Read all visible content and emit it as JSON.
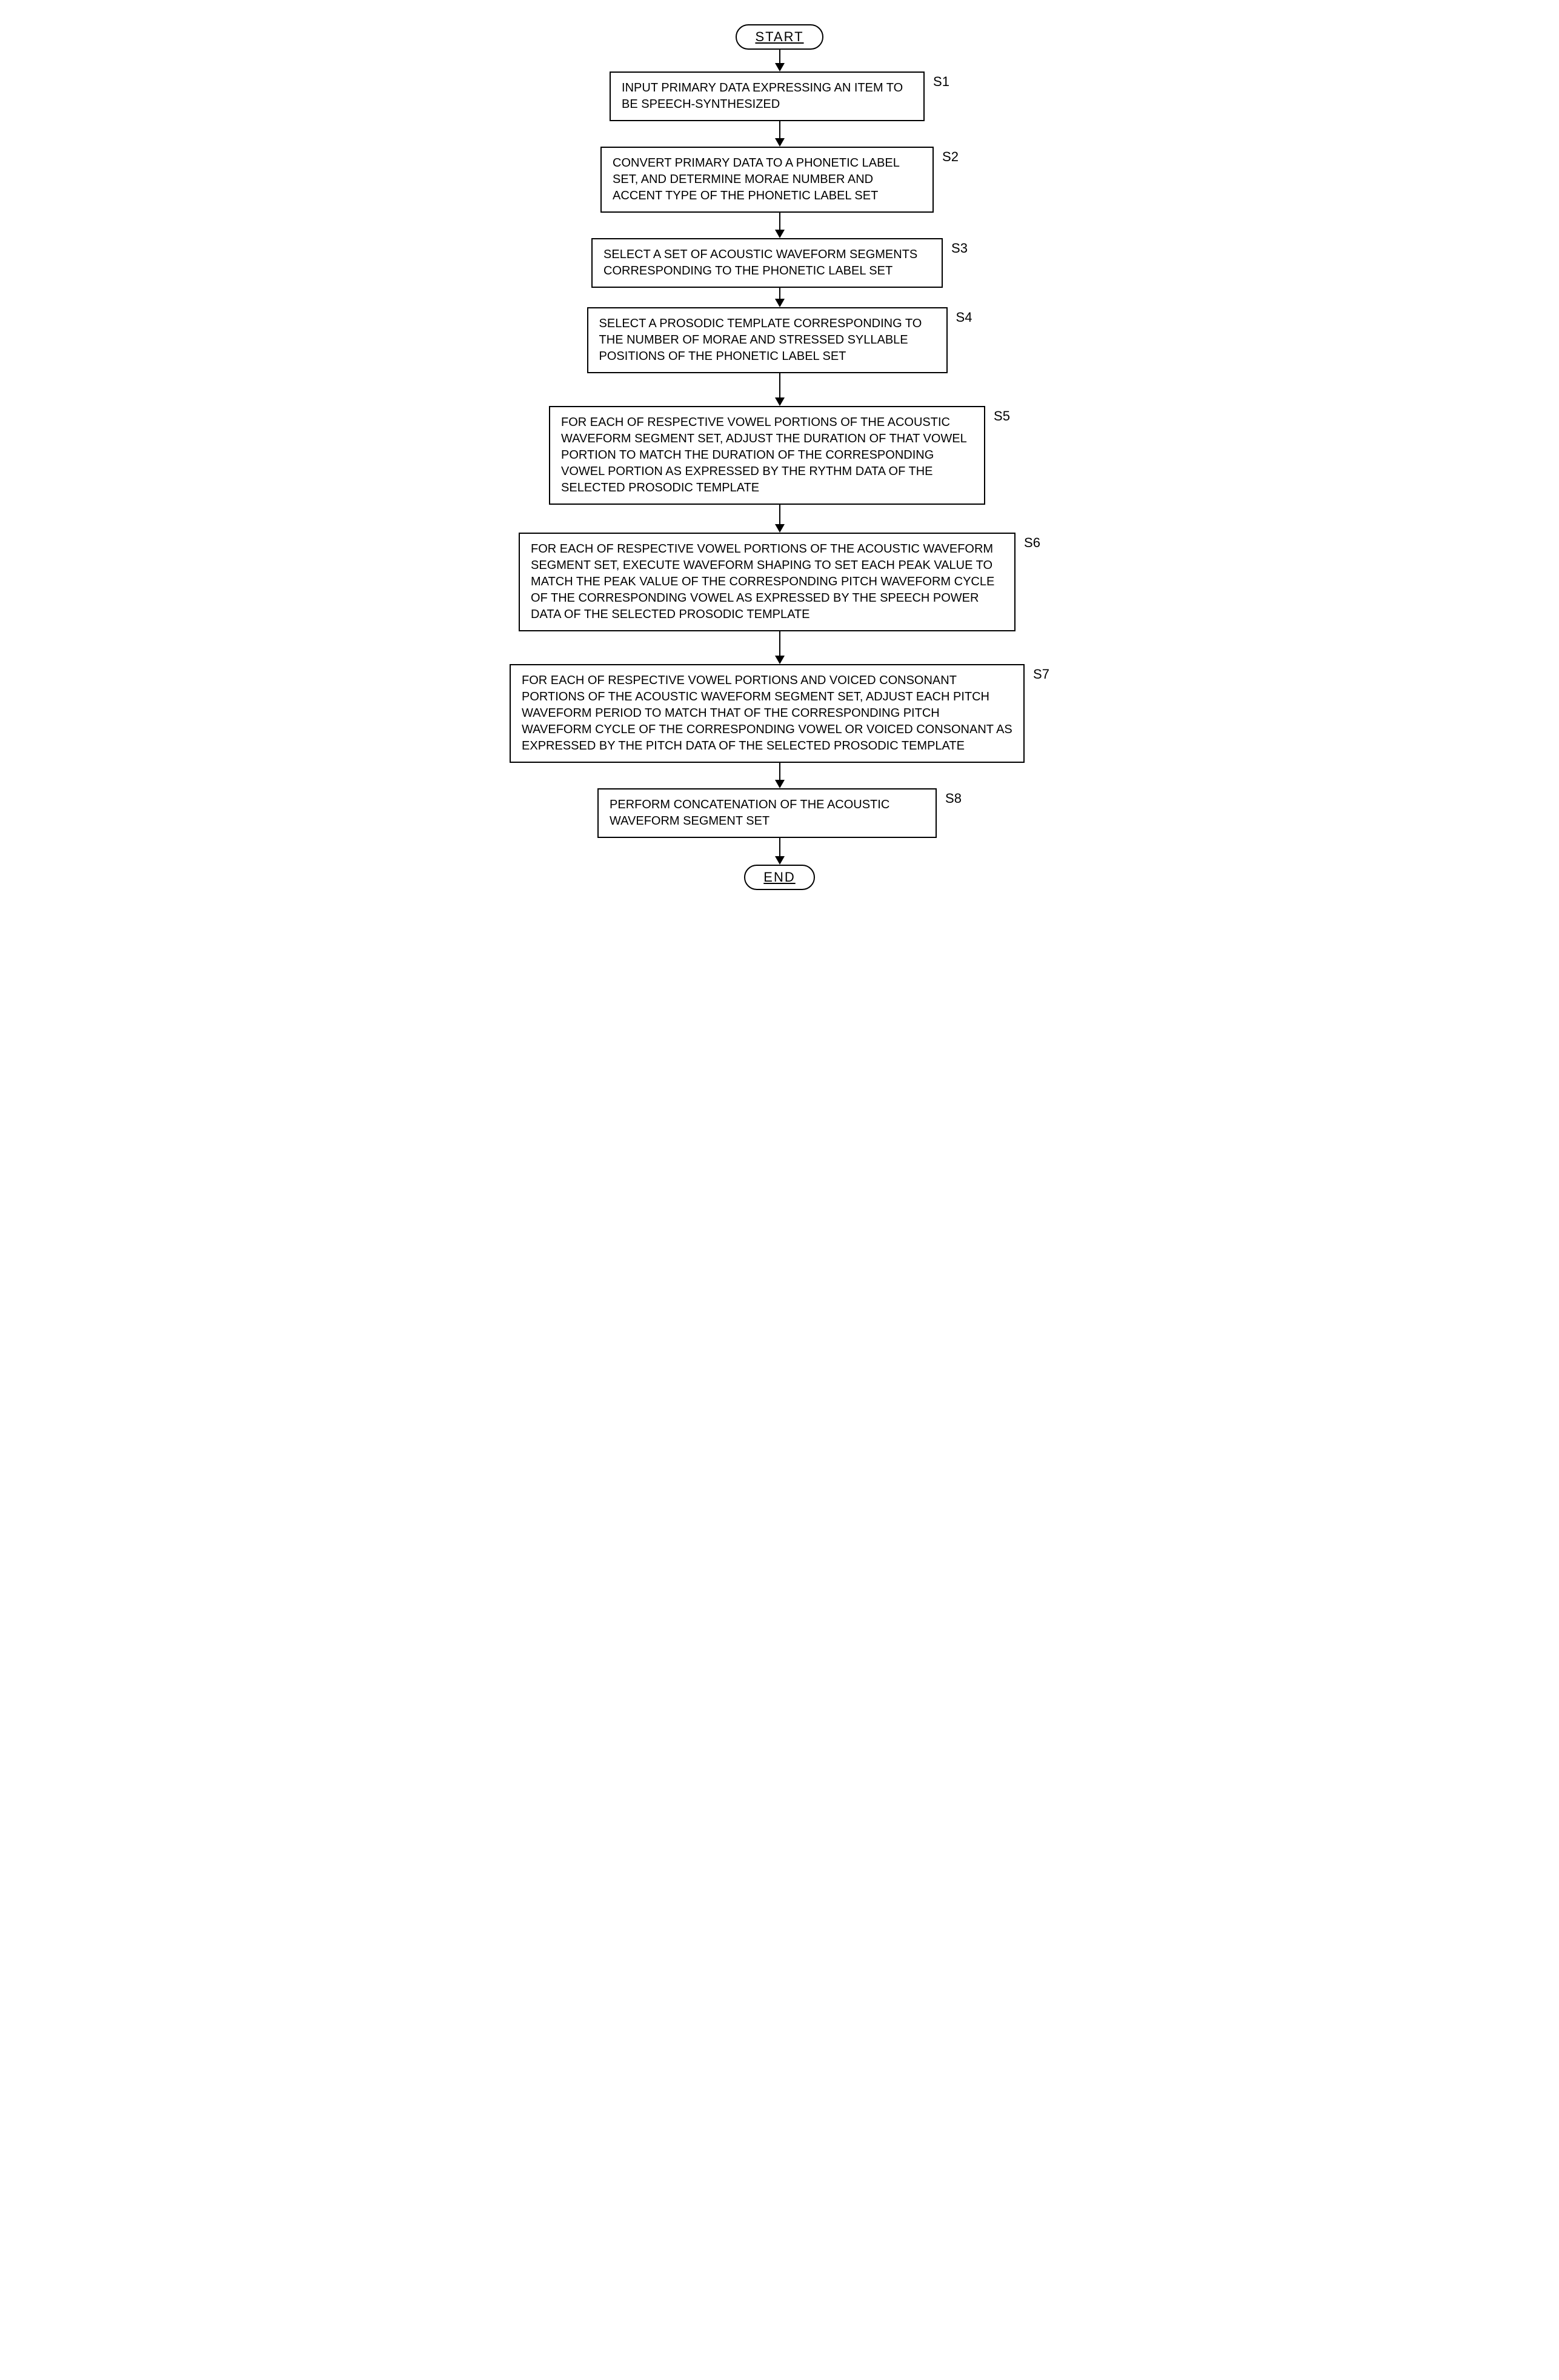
{
  "flowchart": {
    "type": "flowchart",
    "background_color": "#ffffff",
    "border_color": "#000000",
    "text_color": "#000000",
    "font_family": "Arial",
    "box_fontsize": 20,
    "label_fontsize": 22,
    "terminal_fontsize": 22,
    "arrow_line_width": 2,
    "arrow_head_size": 14,
    "start_label": "START",
    "end_label": "END",
    "steps": [
      {
        "id": "S1",
        "label": "S1",
        "text": "INPUT PRIMARY DATA EXPRESSING AN ITEM TO BE SPEECH-SYNTHESIZED",
        "width_class": "w-s1",
        "arrow_before_height": 22,
        "arrow_after_height": 28
      },
      {
        "id": "S2",
        "label": "S2",
        "text": "CONVERT PRIMARY DATA TO A PHONETIC LABEL SET, AND DETERMINE MORAE NUMBER AND ACCENT TYPE OF THE PHONETIC LABEL SET",
        "width_class": "w-s2",
        "arrow_after_height": 28
      },
      {
        "id": "S3",
        "label": "S3",
        "text": "SELECT A SET OF ACOUSTIC WAVEFORM SEGMENTS CORRESPONDING TO THE PHONETIC LABEL SET",
        "width_class": "w-s3",
        "arrow_after_height": 18
      },
      {
        "id": "S4",
        "label": "S4",
        "text": "SELECT A PROSODIC TEMPLATE CORRESPONDING TO THE NUMBER OF MORAE AND STRESSED SYLLABLE POSITIONS OF THE PHONETIC LABEL SET",
        "width_class": "w-s4",
        "arrow_after_height": 40
      },
      {
        "id": "S5",
        "label": "S5",
        "text": "FOR EACH OF RESPECTIVE VOWEL PORTIONS OF THE ACOUSTIC WAVEFORM SEGMENT SET,  ADJUST THE DURATION OF THAT VOWEL PORTION TO MATCH THE DURATION OF THE CORRESPONDING  VOWEL PORTION AS EXPRESSED BY THE RYTHM DATA OF THE SELECTED PROSODIC TEMPLATE",
        "width_class": "w-s5",
        "arrow_after_height": 32
      },
      {
        "id": "S6",
        "label": "S6",
        "text": "FOR EACH OF RESPECTIVE VOWEL PORTIONS OF THE ACOUSTIC WAVEFORM SEGMENT SET,  EXECUTE WAVEFORM SHAPING TO SET  EACH PEAK VALUE TO MATCH THE  PEAK VALUE OF THE CORRESPONDING PITCH WAVEFORM CYCLE OF THE CORRESPONDING VOWEL AS EXPRESSED BY THE SPEECH POWER DATA OF  THE SELECTED PROSODIC TEMPLATE",
        "width_class": "w-s6",
        "arrow_after_height": 40
      },
      {
        "id": "S7",
        "label": "S7",
        "text": "FOR EACH OF RESPECTIVE VOWEL PORTIONS AND VOICED CONSONANT PORTIONS  OF THE ACOUSTIC WAVEFORM SEGMENT SET,  ADJUST EACH PITCH WAVEFORM PERIOD TO MATCH THAT OF THE CORRESPONDING PITCH WAVEFORM CYCLE OF  THE CORRESPONDING VOWEL  OR VOICED CONSONANT AS EXPRESSED BY THE PITCH DATA OF  THE SELECTED PROSODIC TEMPLATE",
        "width_class": "w-s7",
        "arrow_after_height": 28
      },
      {
        "id": "S8",
        "label": "S8",
        "text": "PERFORM CONCATENATION OF THE ACOUSTIC WAVEFORM SEGMENT SET",
        "width_class": "w-s8",
        "arrow_after_height": 30
      }
    ]
  }
}
